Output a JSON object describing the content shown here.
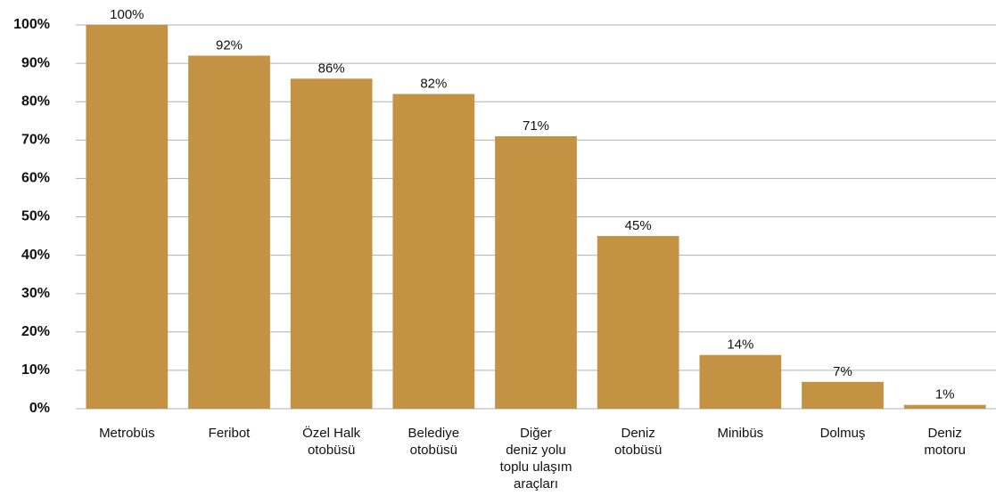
{
  "chart_data": {
    "type": "bar",
    "categories": [
      "Metrobüs",
      "Feribot",
      "Özel Halk\notobüsü",
      "Belediye\notobüsü",
      "Diğer\ndeniz yolu\ntoplu ulaşım\naraçları",
      "Deniz\notobüsü",
      "Minibüs",
      "Dolmuş",
      "Deniz\nmotoru"
    ],
    "values": [
      100,
      92,
      86,
      82,
      71,
      45,
      14,
      7,
      1
    ],
    "value_labels": [
      "100%",
      "92%",
      "86%",
      "82%",
      "71%",
      "45%",
      "14%",
      "7%",
      "1%"
    ],
    "color": "#c39343",
    "ylim": [
      0,
      100
    ],
    "yticks": [
      {
        "value": 0,
        "label": "0%"
      },
      {
        "value": 10,
        "label": "10%"
      },
      {
        "value": 20,
        "label": "20%"
      },
      {
        "value": 30,
        "label": "30%"
      },
      {
        "value": 40,
        "label": "40%"
      },
      {
        "value": 50,
        "label": "50%"
      },
      {
        "value": 60,
        "label": "60%"
      },
      {
        "value": 70,
        "label": "70%"
      },
      {
        "value": 80,
        "label": "80%"
      },
      {
        "value": 90,
        "label": "90%"
      },
      {
        "value": 100,
        "label": "100%"
      }
    ],
    "grid": true
  }
}
